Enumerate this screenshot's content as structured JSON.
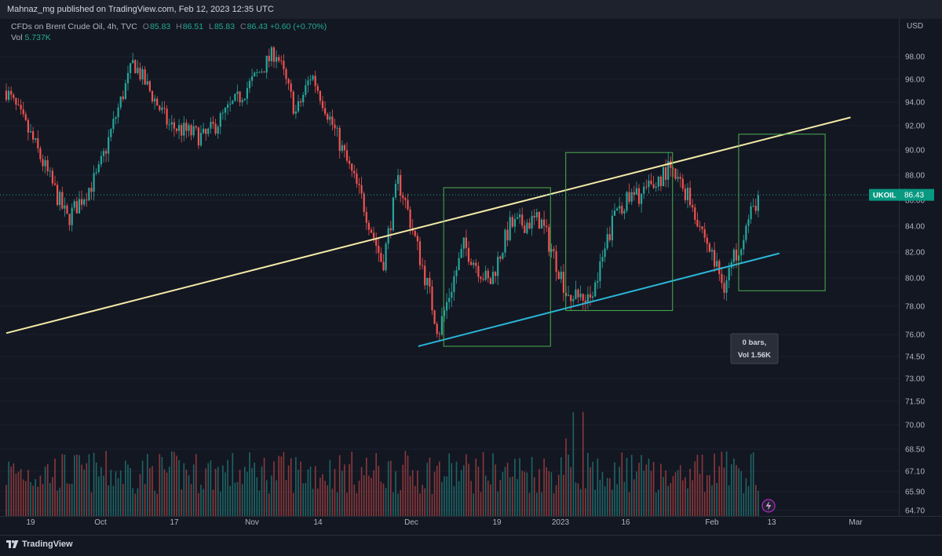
{
  "header": {
    "publisher_line": "Mahnaz_mg published on TradingView.com, Feb 12, 2023 12:35 UTC"
  },
  "legend": {
    "instrument": "CFDs on Brent Crude Oil, 4h, TVC",
    "open_label": "O",
    "open": "85.83",
    "high_label": "H",
    "high": "86.51",
    "low_label": "L",
    "low": "85.83",
    "close_label": "C",
    "close": "86.43",
    "change": "+0.60 (+0.70%)",
    "vol_label": "Vol",
    "vol_value": "5.737K"
  },
  "price_axis": {
    "currency": "USD",
    "last_price_symbol": "UKOIL",
    "last_price": "86.43"
  },
  "tooltip": {
    "line1": "0 bars,",
    "line2": "Vol 1.56K"
  },
  "footer": {
    "brand": "TradingView"
  },
  "colors": {
    "background": "#131722",
    "up": "#26a69a",
    "down": "#ef5350",
    "upper_trendline": "#f5eba8",
    "lower_trendline": "#29b6d6",
    "rectangle": "#4caf50",
    "price_tag": "#089981"
  },
  "chart_data": {
    "type": "candlestick",
    "symbol": "UKOIL",
    "timeframe": "4h",
    "y_tick_labels": [
      "98.00",
      "96.00",
      "94.00",
      "92.00",
      "90.00",
      "88.00",
      "86.00",
      "84.00",
      "82.00",
      "80.00",
      "78.00",
      "76.00",
      "74.50",
      "73.00",
      "71.50",
      "70.00",
      "68.50",
      "67.10",
      "65.90",
      "64.70"
    ],
    "x_tick_labels": [
      "19",
      "Oct",
      "17",
      "Nov",
      "14",
      "Dec",
      "19",
      "2023",
      "16",
      "Feb",
      "13",
      "Mar"
    ],
    "price_path_keypoints": [
      {
        "date": "2022-09-15",
        "close": 95.0
      },
      {
        "date": "2022-09-20",
        "close": 91.0
      },
      {
        "date": "2022-09-27",
        "close": 84.5
      },
      {
        "date": "2022-10-03",
        "close": 88.0
      },
      {
        "date": "2022-10-10",
        "close": 97.5
      },
      {
        "date": "2022-10-17",
        "close": 92.0
      },
      {
        "date": "2022-10-24",
        "close": 91.0
      },
      {
        "date": "2022-10-31",
        "close": 94.5
      },
      {
        "date": "2022-11-07",
        "close": 98.5
      },
      {
        "date": "2022-11-11",
        "close": 93.0
      },
      {
        "date": "2022-11-14",
        "close": 96.5
      },
      {
        "date": "2022-11-21",
        "close": 89.0
      },
      {
        "date": "2022-11-24",
        "close": 86.0
      },
      {
        "date": "2022-11-28",
        "close": 81.0
      },
      {
        "date": "2022-12-01",
        "close": 87.5
      },
      {
        "date": "2022-12-02",
        "close": 86.5
      },
      {
        "date": "2022-12-09",
        "close": 76.2
      },
      {
        "date": "2022-12-14",
        "close": 82.5
      },
      {
        "date": "2022-12-19",
        "close": 79.5
      },
      {
        "date": "2022-12-23",
        "close": 84.0
      },
      {
        "date": "2022-12-29",
        "close": 84.5
      },
      {
        "date": "2023-01-04",
        "close": 78.2
      },
      {
        "date": "2023-01-09",
        "close": 79.5
      },
      {
        "date": "2023-01-13",
        "close": 85.5
      },
      {
        "date": "2023-01-20",
        "close": 87.0
      },
      {
        "date": "2023-01-23",
        "close": 88.5
      },
      {
        "date": "2023-01-27",
        "close": 86.5
      },
      {
        "date": "2023-02-03",
        "close": 79.5
      },
      {
        "date": "2023-02-07",
        "close": 83.5
      },
      {
        "date": "2023-02-10",
        "close": 86.43
      }
    ],
    "drawings": [
      {
        "type": "trendline",
        "name": "upper-trendline",
        "from": {
          "date": "2022-09-15",
          "price": 76.1
        },
        "to": {
          "date": "2023-02-28",
          "price": 92.7
        }
      },
      {
        "type": "trendline",
        "name": "lower-trendline",
        "from": {
          "date": "2022-12-05",
          "price": 75.2
        },
        "to": {
          "date": "2023-02-14",
          "price": 81.9
        }
      },
      {
        "type": "rectangle",
        "name": "box-1",
        "from": {
          "date": "2022-12-10",
          "price": 87.0
        },
        "to": {
          "date": "2022-12-31",
          "price": 75.2
        }
      },
      {
        "type": "rectangle",
        "name": "box-2",
        "from": {
          "date": "2023-01-03",
          "price": 89.8
        },
        "to": {
          "date": "2023-01-24",
          "price": 77.7
        }
      },
      {
        "type": "rectangle",
        "name": "box-3",
        "from": {
          "date": "2023-02-06",
          "price": 91.3
        },
        "to": {
          "date": "2023-02-23",
          "price": 79.1
        }
      }
    ]
  }
}
